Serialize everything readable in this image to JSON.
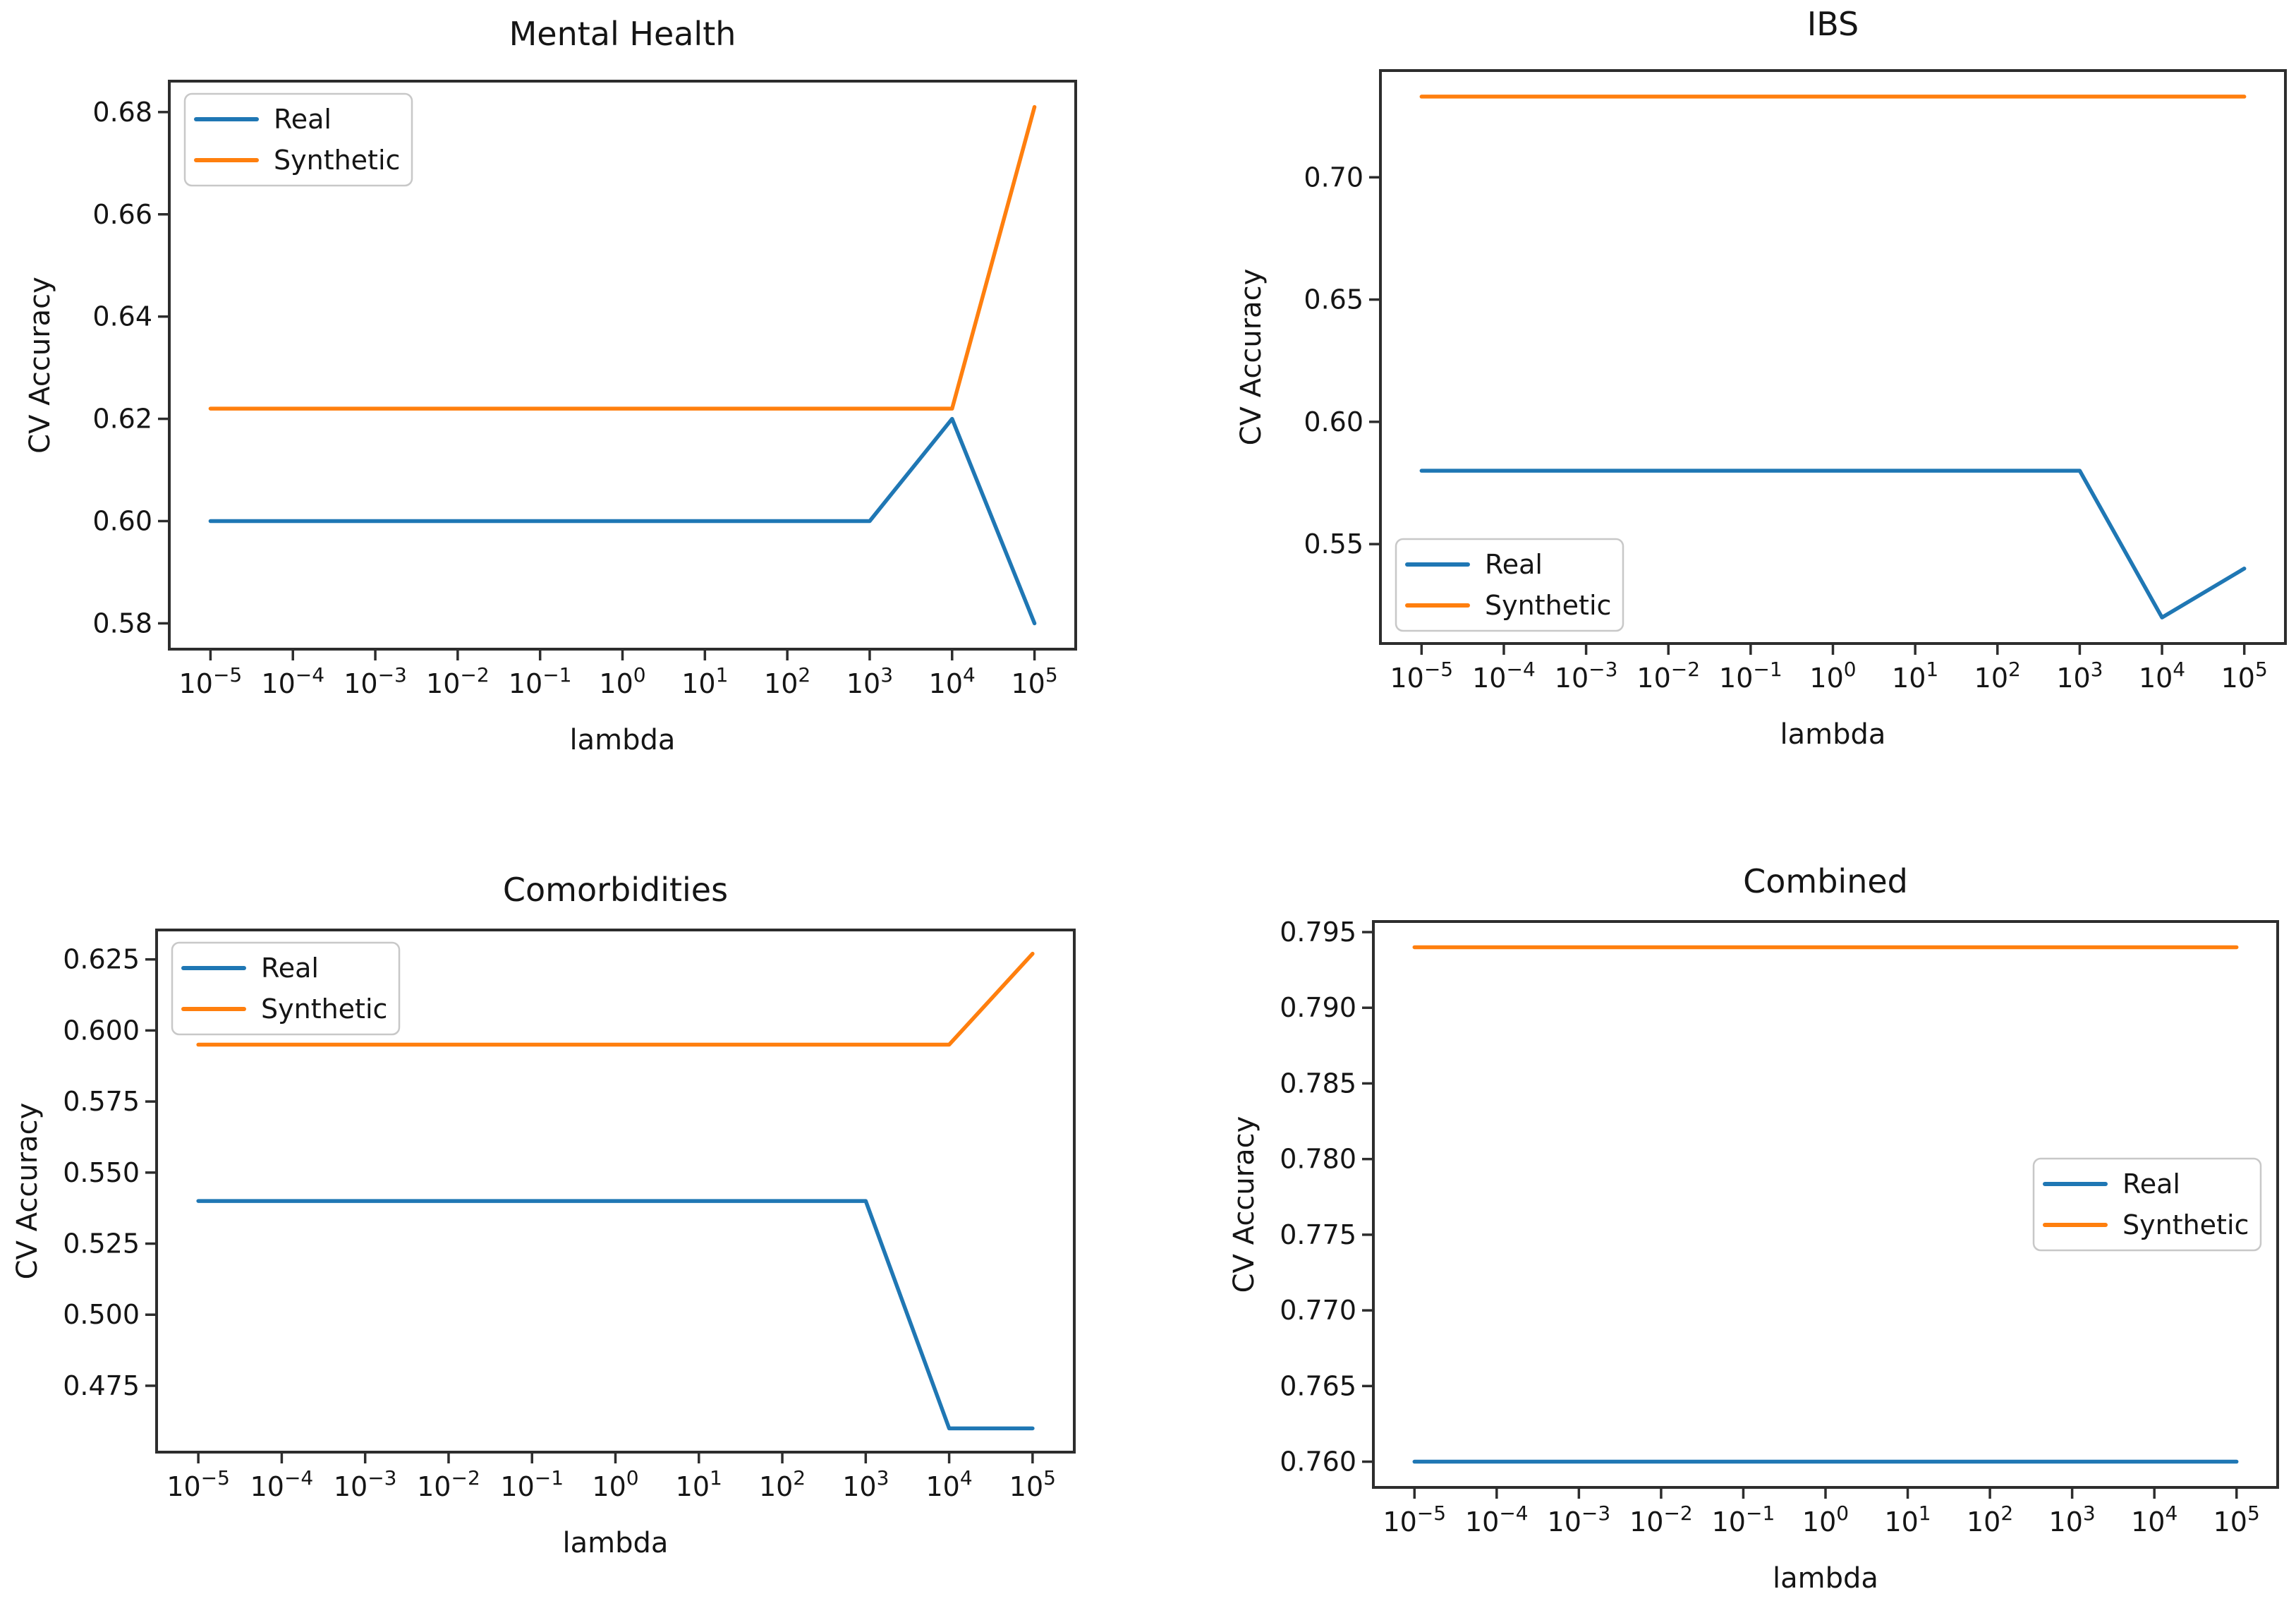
{
  "page": {
    "background": "#ffffff"
  },
  "palette": {
    "real": "#1f77b4",
    "synthetic": "#ff7f0e",
    "spine": "#2d2d2d",
    "text": "#151515",
    "legend_border": "#c8c8c8",
    "legend_bg": "#ffffff"
  },
  "chart_data": [
    {
      "id": "mental-health",
      "type": "line",
      "title": "Mental Health",
      "xlabel": "lambda",
      "ylabel": "CV Accuracy",
      "xscale": "log",
      "grid": false,
      "x_exponents": [
        -5,
        -4,
        -3,
        -2,
        -1,
        0,
        1,
        2,
        3,
        4,
        5
      ],
      "xtick_exponents": [
        -5,
        -4,
        -3,
        -2,
        -1,
        0,
        1,
        2,
        3,
        4,
        5
      ],
      "xlim_exponents": [
        -5.5,
        5.5
      ],
      "ylim": [
        0.57495,
        0.68605
      ],
      "ytick_values": [
        0.58,
        0.6,
        0.62,
        0.64,
        0.66,
        0.68
      ],
      "ytick_labels": [
        "0.58",
        "0.60",
        "0.62",
        "0.64",
        "0.66",
        "0.68"
      ],
      "legend": {
        "position": "upper-left",
        "labels": [
          "Real",
          "Synthetic"
        ]
      },
      "series": [
        {
          "name": "Real",
          "color": "real",
          "values": [
            0.6,
            0.6,
            0.6,
            0.6,
            0.6,
            0.6,
            0.6,
            0.6,
            0.6,
            0.62,
            0.58
          ]
        },
        {
          "name": "Synthetic",
          "color": "synthetic",
          "values": [
            0.622,
            0.622,
            0.622,
            0.622,
            0.622,
            0.622,
            0.622,
            0.622,
            0.622,
            0.622,
            0.681
          ]
        }
      ]
    },
    {
      "id": "ibs",
      "type": "line",
      "title": "IBS",
      "xlabel": "lambda",
      "ylabel": "CV Accuracy",
      "xscale": "log",
      "grid": false,
      "x_exponents": [
        -5,
        -4,
        -3,
        -2,
        -1,
        0,
        1,
        2,
        3,
        4,
        5
      ],
      "xtick_exponents": [
        -5,
        -4,
        -3,
        -2,
        -1,
        0,
        1,
        2,
        3,
        4,
        5
      ],
      "xlim_exponents": [
        -5.5,
        5.5
      ],
      "ylim": [
        0.50935,
        0.74365
      ],
      "ytick_values": [
        0.55,
        0.6,
        0.65,
        0.7
      ],
      "ytick_labels": [
        "0.55",
        "0.60",
        "0.65",
        "0.70"
      ],
      "legend": {
        "position": "lower-left",
        "labels": [
          "Real",
          "Synthetic"
        ]
      },
      "series": [
        {
          "name": "Real",
          "color": "real",
          "values": [
            0.58,
            0.58,
            0.58,
            0.58,
            0.58,
            0.58,
            0.58,
            0.58,
            0.58,
            0.52,
            0.54
          ]
        },
        {
          "name": "Synthetic",
          "color": "synthetic",
          "values": [
            0.733,
            0.733,
            0.733,
            0.733,
            0.733,
            0.733,
            0.733,
            0.733,
            0.733,
            0.733,
            0.733
          ]
        }
      ]
    },
    {
      "id": "comorbidities",
      "type": "line",
      "title": "Comorbidities",
      "xlabel": "lambda",
      "ylabel": "CV Accuracy",
      "xscale": "log",
      "grid": false,
      "x_exponents": [
        -5,
        -4,
        -3,
        -2,
        -1,
        0,
        1,
        2,
        3,
        4,
        5
      ],
      "xtick_exponents": [
        -5,
        -4,
        -3,
        -2,
        -1,
        0,
        1,
        2,
        3,
        4,
        5
      ],
      "xlim_exponents": [
        -5.5,
        5.5
      ],
      "ylim": [
        0.45165,
        0.63535
      ],
      "ytick_values": [
        0.475,
        0.5,
        0.525,
        0.55,
        0.575,
        0.6,
        0.625
      ],
      "ytick_labels": [
        "0.475",
        "0.500",
        "0.525",
        "0.550",
        "0.575",
        "0.600",
        "0.625"
      ],
      "legend": {
        "position": "upper-left",
        "labels": [
          "Real",
          "Synthetic"
        ]
      },
      "series": [
        {
          "name": "Real",
          "color": "real",
          "values": [
            0.54,
            0.54,
            0.54,
            0.54,
            0.54,
            0.54,
            0.54,
            0.54,
            0.54,
            0.46,
            0.46
          ]
        },
        {
          "name": "Synthetic",
          "color": "synthetic",
          "values": [
            0.595,
            0.595,
            0.595,
            0.595,
            0.595,
            0.595,
            0.595,
            0.595,
            0.595,
            0.595,
            0.627
          ]
        }
      ]
    },
    {
      "id": "combined",
      "type": "line",
      "title": "Combined",
      "xlabel": "lambda",
      "ylabel": "CV Accuracy",
      "xscale": "log",
      "grid": false,
      "x_exponents": [
        -5,
        -4,
        -3,
        -2,
        -1,
        0,
        1,
        2,
        3,
        4,
        5
      ],
      "xtick_exponents": [
        -5,
        -4,
        -3,
        -2,
        -1,
        0,
        1,
        2,
        3,
        4,
        5
      ],
      "xlim_exponents": [
        -5.5,
        5.5
      ],
      "ylim": [
        0.7583,
        0.7957
      ],
      "ytick_values": [
        0.76,
        0.765,
        0.77,
        0.775,
        0.78,
        0.785,
        0.79,
        0.795
      ],
      "ytick_labels": [
        "0.760",
        "0.765",
        "0.770",
        "0.775",
        "0.780",
        "0.785",
        "0.790",
        "0.795"
      ],
      "legend": {
        "position": "center-right",
        "labels": [
          "Real",
          "Synthetic"
        ]
      },
      "series": [
        {
          "name": "Real",
          "color": "real",
          "values": [
            0.76,
            0.76,
            0.76,
            0.76,
            0.76,
            0.76,
            0.76,
            0.76,
            0.76,
            0.76,
            0.76
          ]
        },
        {
          "name": "Synthetic",
          "color": "synthetic",
          "values": [
            0.794,
            0.794,
            0.794,
            0.794,
            0.794,
            0.794,
            0.794,
            0.794,
            0.794,
            0.794,
            0.794
          ]
        }
      ]
    }
  ]
}
